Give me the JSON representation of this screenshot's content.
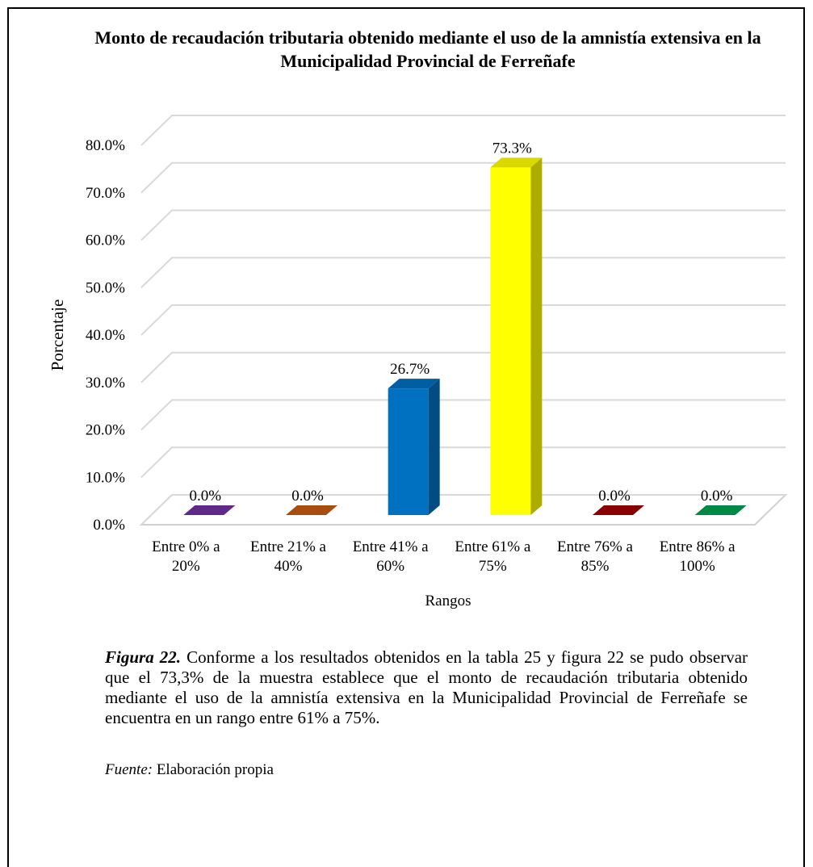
{
  "chart_data": {
    "type": "bar3d",
    "title": "Monto de recaudación tributaria obtenido mediante el uso de la amnistía extensiva en la Municipalidad Provincial de Ferreñafe",
    "x_label": "Rangos",
    "y_label": "Porcentaje",
    "categories": [
      "Entre 0% a 20%",
      "Entre 21% a 40%",
      "Entre 41% a 60%",
      "Entre 61% a 75%",
      "Entre 76% a 85%",
      "Entre 86% a 100%"
    ],
    "values": [
      0,
      0,
      26.7,
      73.3,
      0,
      0
    ],
    "value_labels": [
      "0.0%",
      "0.0%",
      "26.7%",
      "73.3%",
      "0.0%",
      "0.0%"
    ],
    "colors": [
      "#7030a0",
      "#c55a11",
      "#0070c0",
      "#ffff00",
      "#a00000",
      "#00a050"
    ],
    "ylim": [
      0,
      80
    ],
    "yticks": [
      {
        "value": 0,
        "label": "0.0%"
      },
      {
        "value": 10,
        "label": "10.0%"
      },
      {
        "value": 20,
        "label": "20.0%"
      },
      {
        "value": 30,
        "label": "30.0%"
      },
      {
        "value": 40,
        "label": "40.0%"
      },
      {
        "value": 50,
        "label": "50.0%"
      },
      {
        "value": 60,
        "label": "60.0%"
      },
      {
        "value": 70,
        "label": "70.0%"
      },
      {
        "value": 80,
        "label": "80.0%"
      }
    ],
    "grid": true
  },
  "caption": {
    "label": "Figura 22.",
    "text": "Conforme a los resultados obtenidos en la tabla 25 y figura 22 se pudo observar que el 73,3% de la muestra establece que el monto de recaudación tributaria obtenido mediante el uso de la amnistía extensiva en la Municipalidad Provincial de Ferreñafe se encuentra en un rango entre 61% a 75%."
  },
  "source": {
    "label": "Fuente:",
    "text": "Elaboración propia"
  }
}
